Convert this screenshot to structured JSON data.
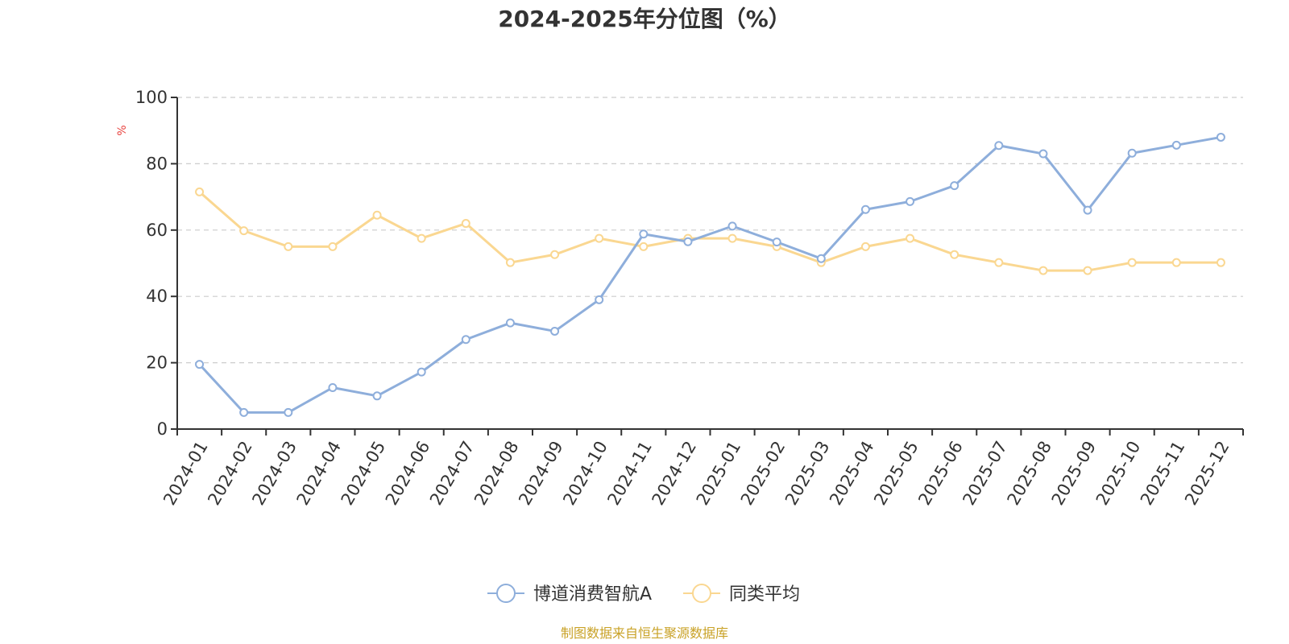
{
  "chart_data": {
    "type": "line",
    "title": "2024-2025年分位图（%）",
    "ylabel": "%",
    "xlabel": "",
    "ylim": [
      0,
      100
    ],
    "yticks": [
      0,
      20,
      40,
      60,
      80,
      100
    ],
    "grid": "horizontal-dashed",
    "legend_position": "bottom-center",
    "categories": [
      "2024-01",
      "2024-02",
      "2024-03",
      "2024-04",
      "2024-05",
      "2024-06",
      "2024-07",
      "2024-08",
      "2024-09",
      "2024-10",
      "2024-11",
      "2024-12",
      "2025-01",
      "2025-02",
      "2025-03",
      "2025-04",
      "2025-05",
      "2025-06",
      "2025-07",
      "2025-08",
      "2025-09",
      "2025-10",
      "2025-11",
      "2025-12"
    ],
    "series": [
      {
        "name": "博道消费智航A",
        "color": "#8eaedb",
        "values": [
          19.5,
          5.0,
          5.0,
          12.5,
          10.0,
          17.2,
          27.0,
          32.0,
          29.5,
          39.0,
          58.8,
          56.5,
          61.2,
          56.4,
          51.4,
          66.2,
          68.6,
          73.4,
          85.5,
          83.0,
          66.0,
          83.2,
          85.6,
          88.0
        ]
      },
      {
        "name": "同类平均",
        "color": "#fad791",
        "values": [
          71.5,
          59.8,
          55.0,
          55.0,
          64.5,
          57.5,
          62.0,
          50.2,
          52.6,
          57.5,
          55.0,
          57.5,
          57.5,
          55.0,
          50.2,
          55.0,
          57.5,
          52.6,
          50.2,
          47.8,
          47.8,
          50.2,
          50.2,
          50.2
        ]
      }
    ]
  },
  "source": {
    "text": "制图数据来自恒生聚源数据库",
    "color": "#c9a227"
  },
  "axis_label_color": "#e8433f"
}
